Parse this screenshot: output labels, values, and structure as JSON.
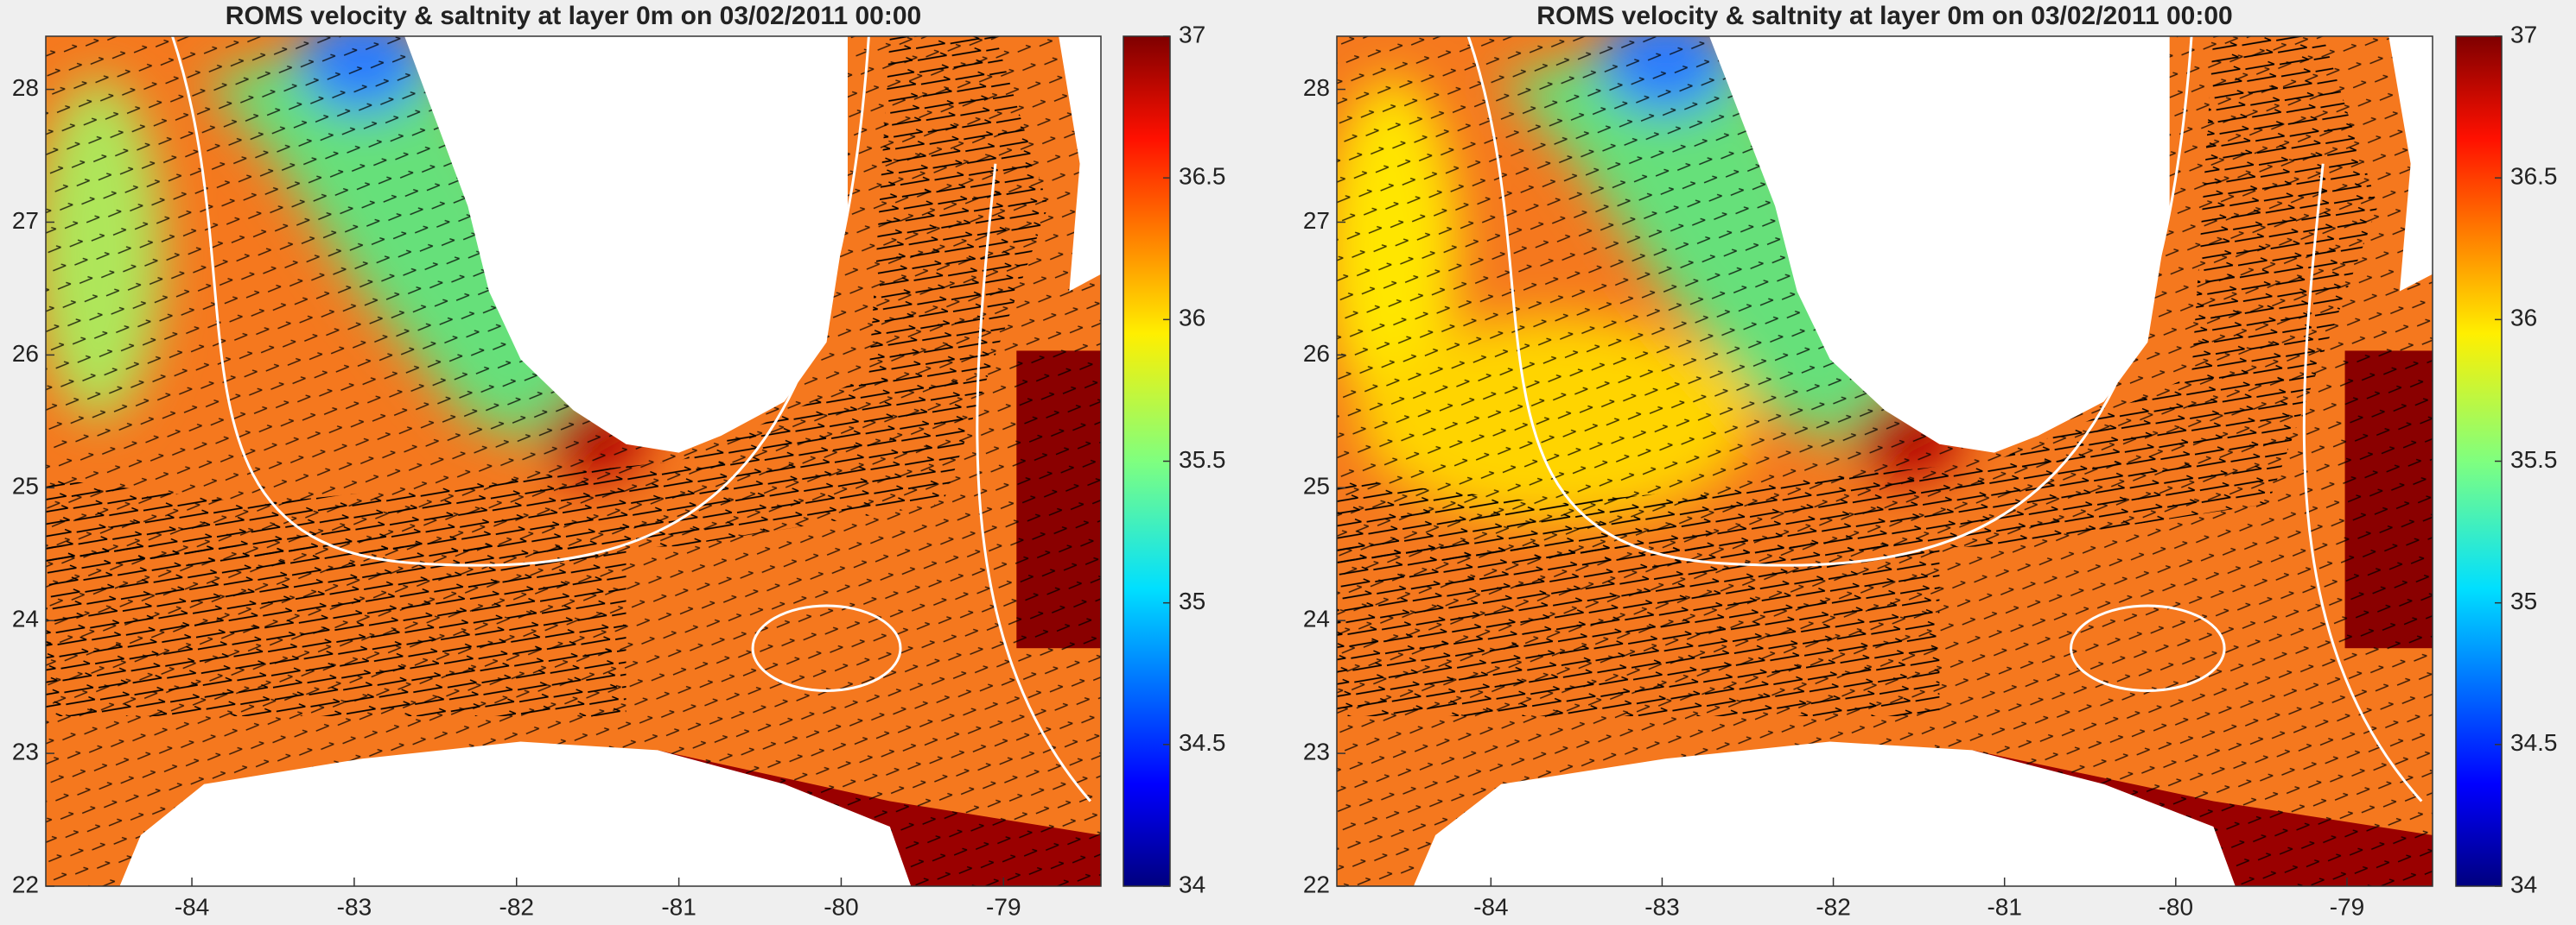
{
  "chart_data": [
    {
      "type": "map",
      "title": "ROMS velocity & saltnity at layer 0m on 03/02/2011 00:00",
      "xlim": [
        -84.9,
        -78.4
      ],
      "ylim": [
        22,
        28.4
      ],
      "xticks": [
        -84,
        -83,
        -82,
        -81,
        -80,
        -79
      ],
      "yticks": [
        22,
        23,
        24,
        25,
        26,
        27,
        28
      ],
      "clim": [
        34,
        37
      ],
      "cticks": [
        34,
        34.5,
        35,
        35.5,
        36,
        36.5,
        37
      ]
    },
    {
      "type": "map",
      "title": "ROMS velocity & saltnity at layer 0m on 03/02/2011 00:00",
      "xlim": [
        -84.9,
        -78.5
      ],
      "ylim": [
        22,
        28.4
      ],
      "xticks": [
        -84,
        -83,
        -82,
        -81,
        -80,
        -79
      ],
      "yticks": [
        22,
        23,
        24,
        25,
        26,
        27,
        28
      ],
      "clim": [
        34,
        37
      ],
      "cticks": [
        34,
        34.5,
        35,
        35.5,
        36,
        36.5,
        37
      ]
    }
  ]
}
